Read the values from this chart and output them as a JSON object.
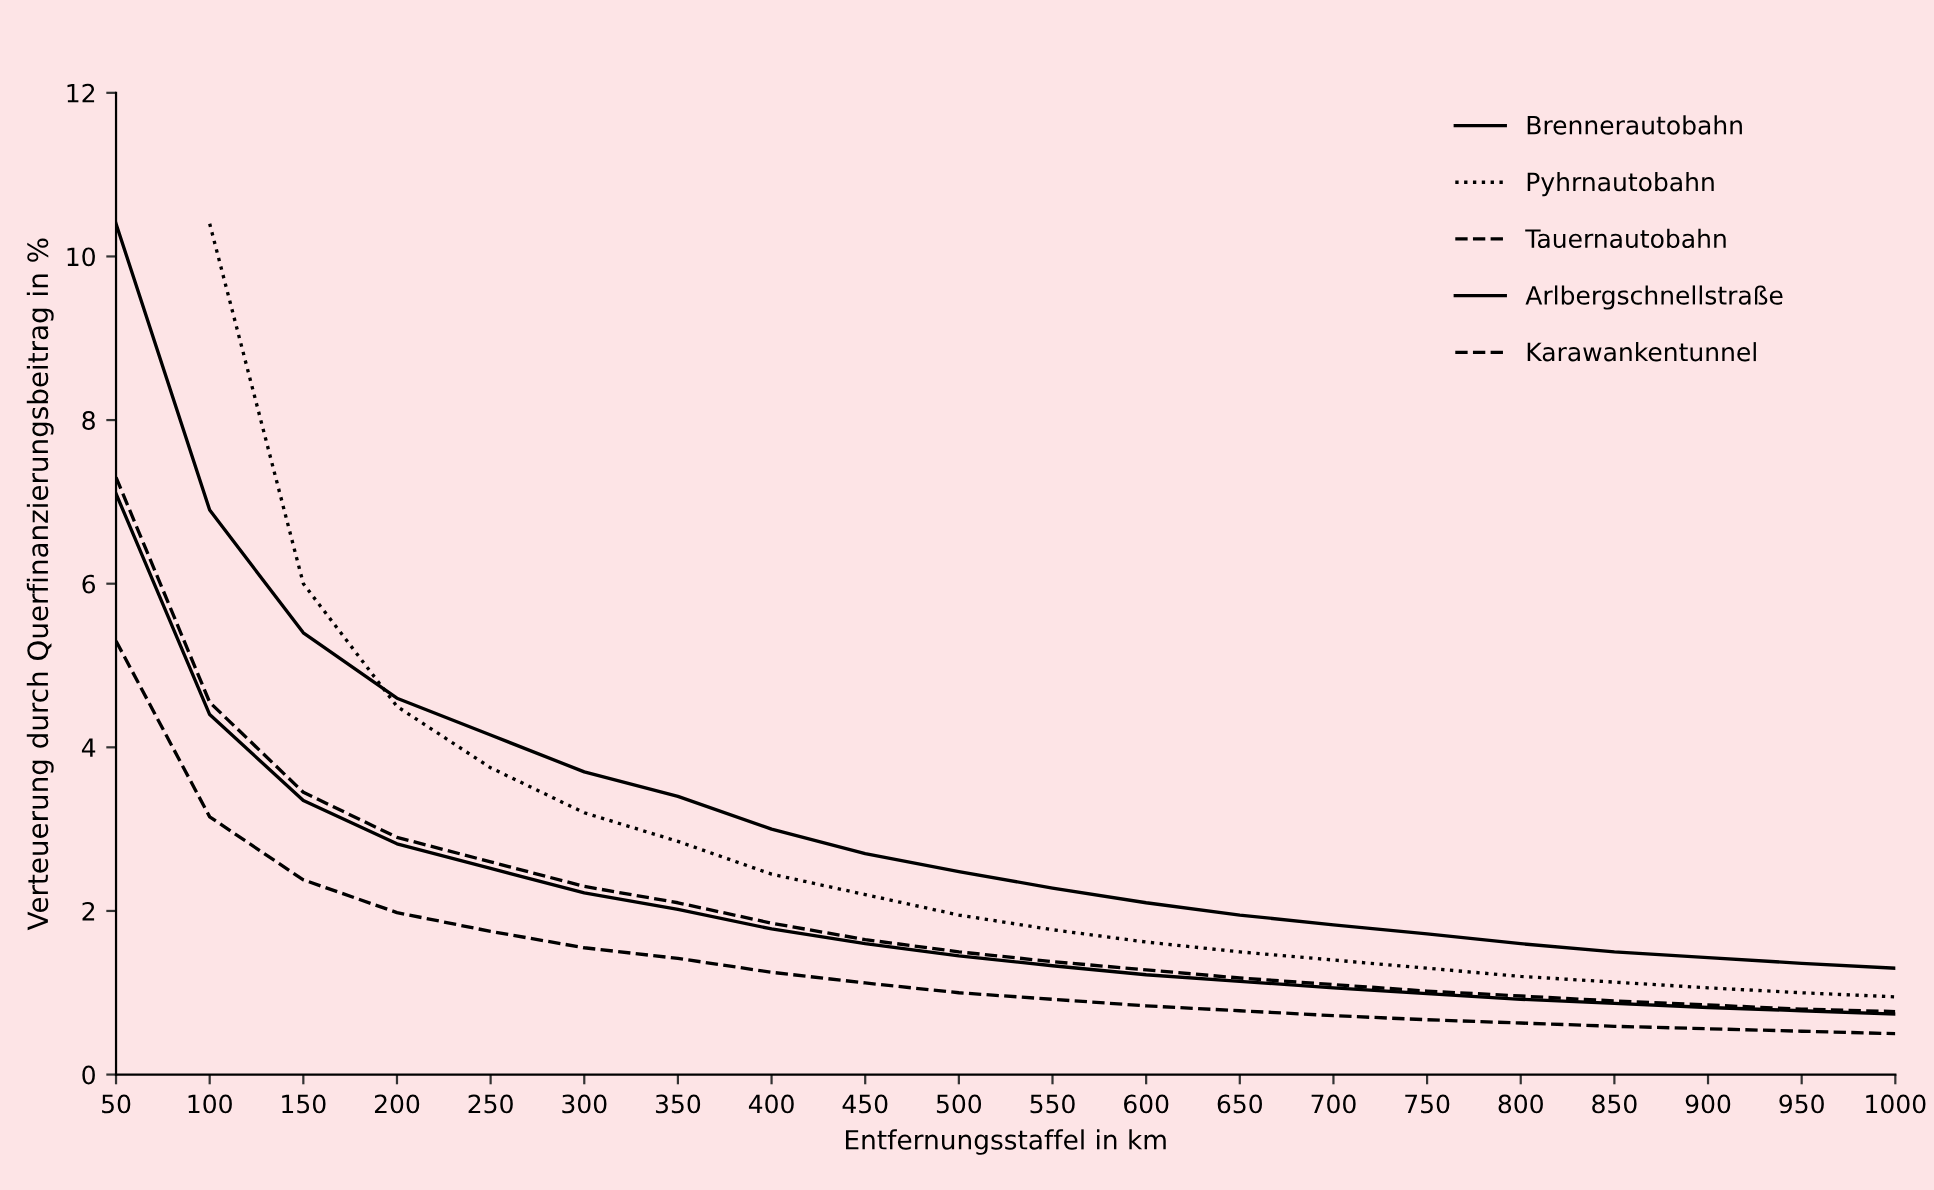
{
  "chart_data": {
    "type": "line",
    "xlabel": "Entfernungsstaffel in km",
    "ylabel": "Verteuerung durch Querfinanzierungsbeitrag in %",
    "categories": [
      "50",
      "100",
      "150",
      "200",
      "250",
      "300",
      "350",
      "400",
      "450",
      "500",
      "550",
      "600",
      "650",
      "700",
      "750",
      "800",
      "850",
      "900",
      "950",
      "1000"
    ],
    "ylim": [
      0,
      12
    ],
    "yticks": [
      0,
      2,
      4,
      6,
      8,
      10,
      12
    ],
    "grid": false,
    "legend": "top right",
    "marker": "none",
    "series": [
      {
        "name": "Brennerautobahn",
        "color": "#000000",
        "line_style": "solid",
        "values": [
          10.4,
          6.9,
          5.4,
          4.6,
          4.15,
          3.7,
          3.4,
          3.0,
          2.7,
          2.48,
          2.28,
          2.1,
          1.95,
          1.83,
          1.72,
          1.6,
          1.5,
          1.43,
          1.36,
          1.3
        ]
      },
      {
        "name": "Pyhrnautobahn",
        "color": "#000000",
        "line_style": "dotted",
        "values": [
          null,
          10.4,
          6.0,
          4.5,
          3.75,
          3.2,
          2.85,
          2.45,
          2.2,
          1.95,
          1.77,
          1.62,
          1.5,
          1.4,
          1.3,
          1.2,
          1.13,
          1.06,
          1.0,
          0.95
        ]
      },
      {
        "name": "Tauernautobahn",
        "color": "#000000",
        "line_style": "dashed",
        "values": [
          7.3,
          4.55,
          3.45,
          2.9,
          2.6,
          2.3,
          2.1,
          1.85,
          1.65,
          1.5,
          1.38,
          1.28,
          1.18,
          1.1,
          1.02,
          0.96,
          0.9,
          0.85,
          0.8,
          0.77
        ]
      },
      {
        "name": "Arlbergschnellstraße",
        "color": "#000000",
        "line_style": "solid",
        "values": [
          7.1,
          4.4,
          3.35,
          2.82,
          2.52,
          2.22,
          2.02,
          1.78,
          1.6,
          1.45,
          1.33,
          1.22,
          1.14,
          1.06,
          0.99,
          0.92,
          0.87,
          0.82,
          0.78,
          0.74
        ]
      },
      {
        "name": "Karawankentunnel",
        "color": "#000000",
        "line_style": "dashed",
        "values": [
          5.3,
          3.15,
          2.38,
          1.98,
          1.75,
          1.55,
          1.42,
          1.25,
          1.12,
          1.0,
          0.92,
          0.84,
          0.78,
          0.72,
          0.67,
          0.63,
          0.59,
          0.56,
          0.53,
          0.5
        ]
      }
    ]
  }
}
